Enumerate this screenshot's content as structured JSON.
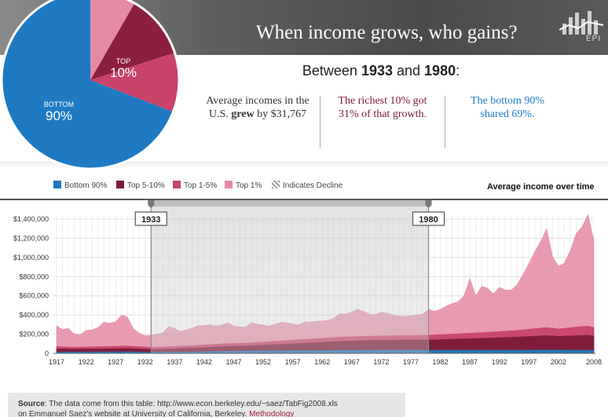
{
  "banner": {
    "title": "When income grows, who gains?",
    "logo": "EPI"
  },
  "pie": {
    "top_label": "TOP",
    "top_value": "10%",
    "bottom_label": "BOTTOM",
    "bottom_value": "90%",
    "colors": {
      "bottom": "#1f7ac2",
      "top_dark": "#8c1f3e",
      "top_mid": "#c8426a",
      "top_light": "#e58aa3"
    }
  },
  "headline": {
    "prefix": "Between ",
    "start": "1933",
    "mid": " and ",
    "end": "1980",
    "suffix": ":"
  },
  "stats": [
    {
      "pre": "Average incomes in the U.S. ",
      "bold": "grew",
      "post": " by $31,767"
    },
    {
      "text": "The richest 10% got 31% of that growth."
    },
    {
      "text": "The bottom 90% shared 69%."
    }
  ],
  "legend": [
    {
      "label": "Bottom 90%",
      "color": "#1f7ac2"
    },
    {
      "label": "Top 5-10%",
      "color": "#7a1a36"
    },
    {
      "label": "Top 1-5%",
      "color": "#c8426a"
    },
    {
      "label": "Top 1%",
      "color": "#e58aa3"
    },
    {
      "label": "Indicates Decline",
      "color": "#9a9a9a"
    }
  ],
  "chart_title": "Average income over time",
  "chart_data": {
    "type": "area",
    "stacked": false,
    "xlabel": "",
    "ylabel": "",
    "xlim": [
      1917,
      2008
    ],
    "ylim": [
      0,
      1400000
    ],
    "ytick_values": [
      0,
      200000,
      400000,
      600000,
      800000,
      1000000,
      1200000,
      1400000
    ],
    "ytick_labels": [
      "0",
      "$200,000",
      "$400,000",
      "$600,000",
      "$800,000",
      "$1,000,000",
      "$1,200,000",
      "$1,400,000"
    ],
    "xtick_values": [
      1917,
      1922,
      1927,
      1932,
      1937,
      1942,
      1947,
      1952,
      1957,
      1962,
      1967,
      1972,
      1977,
      1982,
      1987,
      1992,
      1997,
      2002,
      2008
    ],
    "xtick_labels": [
      "1917",
      "1922",
      "1927",
      "1932",
      "1937",
      "1942",
      "1947",
      "1952",
      "1957",
      "1962",
      "1967",
      "1972",
      "1977",
      "1982",
      "1987",
      "1992",
      "1997",
      "2002",
      "2008"
    ],
    "highlight": {
      "start": 1933,
      "end": 1980,
      "start_label": "1933",
      "end_label": "1980"
    },
    "series": [
      {
        "name": "Top 1%",
        "color": "#e58aa3",
        "x": [
          1917,
          1918,
          1919,
          1920,
          1921,
          1922,
          1923,
          1924,
          1925,
          1926,
          1927,
          1928,
          1929,
          1930,
          1931,
          1932,
          1933,
          1934,
          1935,
          1936,
          1937,
          1938,
          1939,
          1940,
          1941,
          1942,
          1943,
          1944,
          1945,
          1946,
          1947,
          1948,
          1949,
          1950,
          1951,
          1952,
          1953,
          1954,
          1955,
          1956,
          1957,
          1958,
          1959,
          1960,
          1961,
          1962,
          1963,
          1964,
          1965,
          1966,
          1967,
          1968,
          1969,
          1970,
          1971,
          1972,
          1973,
          1974,
          1975,
          1976,
          1977,
          1978,
          1979,
          1980,
          1981,
          1982,
          1983,
          1984,
          1985,
          1986,
          1987,
          1988,
          1989,
          1990,
          1991,
          1992,
          1993,
          1994,
          1995,
          1996,
          1997,
          1998,
          1999,
          2000,
          2001,
          2002,
          2003,
          2004,
          2005,
          2006,
          2007,
          2008
        ],
        "values": [
          290000,
          250000,
          260000,
          205000,
          195000,
          240000,
          245000,
          270000,
          325000,
          315000,
          330000,
          400000,
          380000,
          260000,
          210000,
          185000,
          190000,
          200000,
          215000,
          280000,
          260000,
          230000,
          245000,
          265000,
          290000,
          290000,
          300000,
          285000,
          295000,
          320000,
          285000,
          275000,
          275000,
          320000,
          305000,
          295000,
          285000,
          305000,
          325000,
          320000,
          305000,
          300000,
          330000,
          325000,
          335000,
          340000,
          345000,
          370000,
          415000,
          410000,
          430000,
          460000,
          440000,
          410000,
          405000,
          430000,
          420000,
          400000,
          390000,
          385000,
          395000,
          400000,
          410000,
          460000,
          440000,
          460000,
          495000,
          520000,
          540000,
          600000,
          780000,
          600000,
          700000,
          680000,
          620000,
          690000,
          660000,
          660000,
          720000,
          820000,
          940000,
          1060000,
          1170000,
          1300000,
          1010000,
          910000,
          940000,
          1070000,
          1250000,
          1320000,
          1450000,
          1180000
        ]
      },
      {
        "name": "Top 1-5%",
        "color": "#c8426a",
        "x": [
          1917,
          1920,
          1925,
          1929,
          1933,
          1940,
          1945,
          1950,
          1955,
          1960,
          1965,
          1970,
          1975,
          1980,
          1985,
          1990,
          1995,
          2000,
          2002,
          2005,
          2007,
          2008
        ],
        "values": [
          72000,
          64000,
          72000,
          78000,
          62000,
          80000,
          100000,
          110000,
          130000,
          150000,
          170000,
          180000,
          185000,
          190000,
          205000,
          220000,
          240000,
          270000,
          255000,
          275000,
          285000,
          270000
        ]
      },
      {
        "name": "Top 5-10%",
        "color": "#7a1a36",
        "x": [
          1917,
          1920,
          1925,
          1929,
          1933,
          1940,
          1945,
          1950,
          1955,
          1960,
          1965,
          1970,
          1975,
          1980,
          1985,
          1990,
          1995,
          2000,
          2002,
          2005,
          2007,
          2008
        ],
        "values": [
          48000,
          44000,
          48000,
          52000,
          40000,
          55000,
          70000,
          80000,
          95000,
          110000,
          125000,
          135000,
          140000,
          140000,
          150000,
          160000,
          170000,
          185000,
          178000,
          185000,
          190000,
          182000
        ]
      },
      {
        "name": "Bottom 90%",
        "color": "#1f7ac2",
        "x": [
          1917,
          1920,
          1925,
          1929,
          1933,
          1940,
          1945,
          1950,
          1955,
          1960,
          1965,
          1970,
          1975,
          1980,
          1985,
          1990,
          1995,
          2000,
          2002,
          2005,
          2007,
          2008
        ],
        "values": [
          15000,
          14500,
          16500,
          17000,
          12000,
          15000,
          22000,
          25000,
          27500,
          29000,
          32000,
          33000,
          33500,
          32500,
          32000,
          32500,
          32000,
          35000,
          33500,
          32500,
          33000,
          32000
        ]
      }
    ]
  },
  "source": {
    "label": "Source",
    "line1": ": The data come from this table: http://www.econ.berkeley.edu/~saez/TabFig2008.xls",
    "line2_prefix": "on Emmanuel Saez's website at University of California, Berkeley. ",
    "line2_link": "Methodology"
  }
}
